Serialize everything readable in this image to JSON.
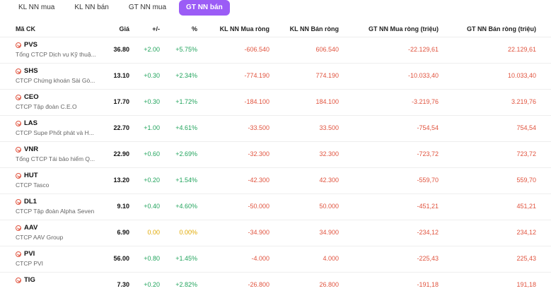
{
  "tabs": [
    {
      "label": "KL NN mua",
      "active": false
    },
    {
      "label": "KL NN bán",
      "active": false
    },
    {
      "label": "GT NN mua",
      "active": false
    },
    {
      "label": "GT NN bán",
      "active": true
    }
  ],
  "headers": {
    "symbol": "Mã CK",
    "price": "Giá",
    "change": "+/-",
    "percent": "%",
    "kl_buy": "KL NN Mua ròng",
    "kl_sell": "KL NN Bán ròng",
    "gt_buy": "GT NN Mua ròng (triệu)",
    "gt_sell": "GT NN Bán ròng (triệu)"
  },
  "rows": [
    {
      "symbol": "PVS",
      "name": "Tổng CTCP Dịch vụ Kỹ thuậ...",
      "price": "36.80",
      "change": "+2.00",
      "percent": "+5.75%",
      "kl_buy": "-606.540",
      "kl_sell": "606.540",
      "gt_buy": "-22.129,61",
      "gt_sell": "22.129,61",
      "trend": "up"
    },
    {
      "symbol": "SHS",
      "name": "CTCP Chứng khoán Sài Gò...",
      "price": "13.10",
      "change": "+0.30",
      "percent": "+2.34%",
      "kl_buy": "-774.190",
      "kl_sell": "774.190",
      "gt_buy": "-10.033,40",
      "gt_sell": "10.033,40",
      "trend": "up"
    },
    {
      "symbol": "CEO",
      "name": "CTCP Tập đoàn C.E.O",
      "price": "17.70",
      "change": "+0.30",
      "percent": "+1.72%",
      "kl_buy": "-184.100",
      "kl_sell": "184.100",
      "gt_buy": "-3.219,76",
      "gt_sell": "3.219,76",
      "trend": "up"
    },
    {
      "symbol": "LAS",
      "name": "CTCP Supe Phốt phát và H...",
      "price": "22.70",
      "change": "+1.00",
      "percent": "+4.61%",
      "kl_buy": "-33.500",
      "kl_sell": "33.500",
      "gt_buy": "-754,54",
      "gt_sell": "754,54",
      "trend": "up"
    },
    {
      "symbol": "VNR",
      "name": "Tổng CTCP Tái bảo hiểm Q...",
      "price": "22.90",
      "change": "+0.60",
      "percent": "+2.69%",
      "kl_buy": "-32.300",
      "kl_sell": "32.300",
      "gt_buy": "-723,72",
      "gt_sell": "723,72",
      "trend": "up"
    },
    {
      "symbol": "HUT",
      "name": "CTCP Tasco",
      "price": "13.20",
      "change": "+0.20",
      "percent": "+1.54%",
      "kl_buy": "-42.300",
      "kl_sell": "42.300",
      "gt_buy": "-559,70",
      "gt_sell": "559,70",
      "trend": "up"
    },
    {
      "symbol": "DL1",
      "name": "CTCP Tập đoàn Alpha Seven",
      "price": "9.10",
      "change": "+0.40",
      "percent": "+4.60%",
      "kl_buy": "-50.000",
      "kl_sell": "50.000",
      "gt_buy": "-451,21",
      "gt_sell": "451,21",
      "trend": "up"
    },
    {
      "symbol": "AAV",
      "name": "CTCP AAV Group",
      "price": "6.90",
      "change": "0.00",
      "percent": "0.00%",
      "kl_buy": "-34.900",
      "kl_sell": "34.900",
      "gt_buy": "-234,12",
      "gt_sell": "234,12",
      "trend": "flat"
    },
    {
      "symbol": "PVI",
      "name": "CTCP PVI",
      "price": "56.00",
      "change": "+0.80",
      "percent": "+1.45%",
      "kl_buy": "-4.000",
      "kl_sell": "4.000",
      "gt_buy": "-225,43",
      "gt_sell": "225,43",
      "trend": "up"
    },
    {
      "symbol": "TIG",
      "name": "",
      "price": "7.30",
      "change": "+0.20",
      "percent": "+2.82%",
      "kl_buy": "-26.800",
      "kl_sell": "26.800",
      "gt_buy": "-191,18",
      "gt_sell": "191,18",
      "trend": "up"
    }
  ],
  "colors": {
    "accent": "#9b5cf6",
    "up": "#22a45d",
    "flat": "#e0a800",
    "down": "#e0533e"
  }
}
